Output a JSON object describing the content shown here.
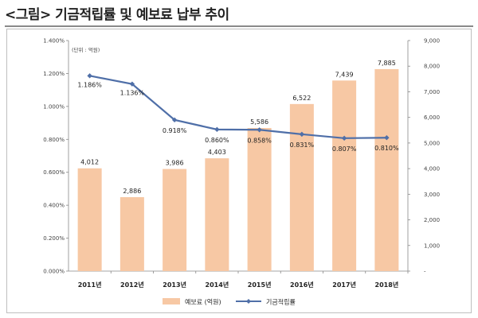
{
  "page": {
    "title": "<그림> 기금적립률 및 예보료 납부 추이"
  },
  "chart_data": {
    "type": "bar",
    "categories": [
      "2011년",
      "2012년",
      "2013년",
      "2014년",
      "2015년",
      "2016년",
      "2017년",
      "2018년"
    ],
    "series": [
      {
        "name": "예보료 (억원)",
        "type": "bar",
        "axis": "right",
        "values": [
          4012,
          2886,
          3986,
          4403,
          5586,
          6522,
          7439,
          7885
        ],
        "labels": [
          "4,012",
          "2,886",
          "3,986",
          "4,403",
          "5,586",
          "6,522",
          "7,439",
          "7,885"
        ],
        "color": "#f7c8a4"
      },
      {
        "name": "기금적립률",
        "type": "line",
        "axis": "left",
        "values": [
          1.186,
          1.136,
          0.918,
          0.86,
          0.858,
          0.831,
          0.807,
          0.81
        ],
        "labels": [
          "1.186%",
          "1.136%",
          "0.918%",
          "0.860%",
          "0.858%",
          "0.831%",
          "0.807%",
          "0.810%"
        ],
        "color": "#4f6fa8"
      }
    ],
    "y_left": {
      "range": [
        0,
        1.4
      ],
      "ticks": [
        0,
        0.2,
        0.4,
        0.6,
        0.8,
        1.0,
        1.2,
        1.4
      ],
      "tick_labels": [
        "0.000%",
        "0.200%",
        "0.400%",
        "0.600%",
        "0.800%",
        "1.000%",
        "1.200%",
        "1.400%"
      ]
    },
    "y_right": {
      "range": [
        0,
        9000
      ],
      "unit_label": "(단위 : 억원)",
      "ticks": [
        0,
        1000,
        2000,
        3000,
        4000,
        5000,
        6000,
        7000,
        8000,
        9000
      ],
      "tick_labels": [
        "-",
        "1,000",
        "2,000",
        "3,000",
        "4,000",
        "5,000",
        "6,000",
        "7,000",
        "8,000",
        "9,000"
      ]
    },
    "grid": false,
    "legend": {
      "position": "bottom",
      "items": [
        "예보료 (억원)",
        "기금적립률"
      ]
    }
  }
}
